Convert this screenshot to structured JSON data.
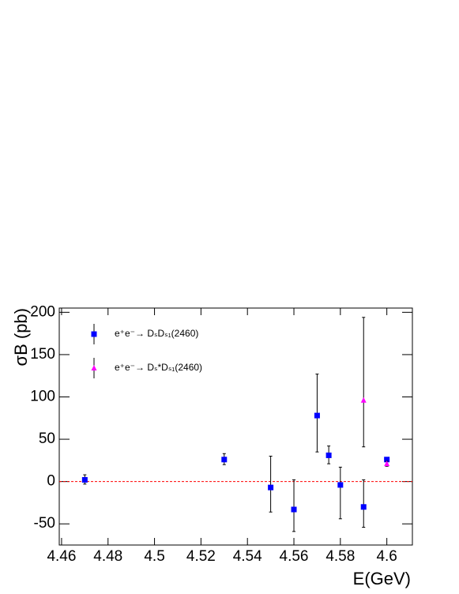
{
  "chart_data": {
    "type": "scatter",
    "x_label": "E(GeV)",
    "y_label": "σB (pb)",
    "xlim": [
      4.459,
      4.611
    ],
    "ylim": [
      -75,
      205
    ],
    "xticks": [
      4.46,
      4.48,
      4.5,
      4.52,
      4.54,
      4.56,
      4.58,
      4.6
    ],
    "yticks": [
      -50,
      0,
      50,
      100,
      150,
      200
    ],
    "reference_line": 0,
    "reference_color": "#ff0000",
    "series": [
      {
        "name": "e⁺e⁻→ DₛDₛ₁(2460)",
        "color": "#0000ff",
        "marker": "square",
        "x": [
          4.47,
          4.53,
          4.55,
          4.56,
          4.57,
          4.575,
          4.58,
          4.59,
          4.6
        ],
        "values": [
          2,
          26,
          -7,
          -33,
          78,
          31,
          -4,
          -30,
          26
        ],
        "err_plus": [
          6,
          7,
          37,
          35,
          49,
          11,
          21,
          32,
          2
        ],
        "err_minus": [
          5,
          6,
          29,
          26,
          43,
          10,
          40,
          24,
          2
        ]
      },
      {
        "name": "e⁺e⁻→ Dₛ*Dₛ₁(2460)",
        "color": "#ff00ff",
        "marker": "triangle",
        "x": [
          4.59,
          4.6
        ],
        "values": [
          96,
          21
        ],
        "err_plus": [
          98,
          3
        ],
        "err_minus": [
          55,
          3
        ]
      }
    ]
  }
}
